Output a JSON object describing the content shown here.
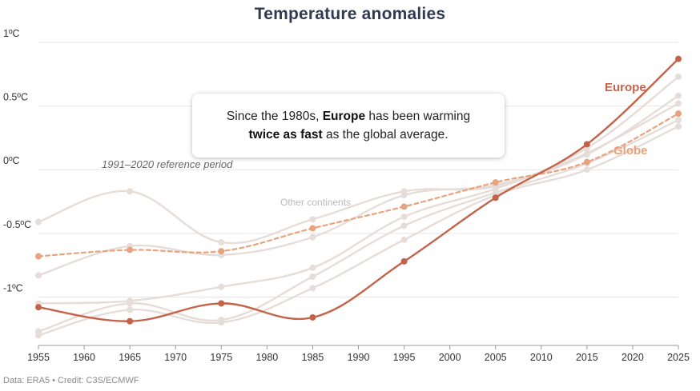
{
  "chart_data": {
    "type": "line",
    "title": "Temperature anomalies",
    "x": [
      1955,
      1965,
      1975,
      1985,
      1995,
      2005,
      2015,
      2025
    ],
    "xticks": [
      1955,
      1960,
      1965,
      1970,
      1975,
      1980,
      1985,
      1990,
      1995,
      2000,
      2005,
      2010,
      2015,
      2020,
      2025
    ],
    "yticks": [
      {
        "value": 1,
        "label": "1ºC"
      },
      {
        "value": 0.5,
        "label": "0.5ºC"
      },
      {
        "value": 0,
        "label": "0ºC"
      },
      {
        "value": -0.5,
        "label": "-0.5ºC"
      },
      {
        "value": -1,
        "label": "-1ºC"
      }
    ],
    "xlim": [
      1955,
      2025
    ],
    "ylim": [
      -1.38,
      1.05
    ],
    "grid": true,
    "series": [
      {
        "name": "Other continents",
        "group": "other",
        "values": [
          -0.41,
          -0.17,
          -0.57,
          -0.39,
          -0.17,
          -0.13,
          0.17,
          0.73
        ]
      },
      {
        "name": "Other continents",
        "group": "other",
        "values": [
          -0.83,
          -0.6,
          -0.67,
          -0.53,
          -0.2,
          -0.12,
          0.12,
          0.58
        ]
      },
      {
        "name": "Other continents",
        "group": "other",
        "values": [
          -1.05,
          -1.03,
          -0.92,
          -0.77,
          -0.37,
          -0.15,
          0.13,
          0.52
        ]
      },
      {
        "name": "Other continents",
        "group": "other",
        "values": [
          -1.27,
          -1.05,
          -1.18,
          -0.84,
          -0.44,
          -0.18,
          0.05,
          0.39
        ]
      },
      {
        "name": "Other continents",
        "group": "other",
        "values": [
          -1.3,
          -1.1,
          -1.2,
          -0.93,
          -0.55,
          -0.2,
          0.0,
          0.34
        ]
      },
      {
        "name": "Globe",
        "group": "globe",
        "values": [
          -0.68,
          -0.63,
          -0.64,
          -0.46,
          -0.29,
          -0.1,
          0.06,
          0.44
        ]
      },
      {
        "name": "Europe",
        "group": "europe",
        "values": [
          -1.08,
          -1.19,
          -1.05,
          -1.16,
          -0.72,
          -0.22,
          0.2,
          0.87
        ]
      }
    ],
    "labels": {
      "europe": "Europe",
      "globe": "Globe",
      "other": "Other continents",
      "reference": "1991–2020 reference period"
    },
    "colors": {
      "europe": "#c4634a",
      "globe": "#e8a27c",
      "other": "#e6dcd8",
      "grid": "#e6e6e6",
      "axis": "#9a9a9a"
    }
  },
  "callout": {
    "part1": "Since the 1980s, ",
    "bold1": "Europe",
    "part2": " has been warming ",
    "bold2": "twice as fast",
    "part3": " as the global average."
  },
  "source": "Data: ERA5 • Credit: C3S/ECMWF"
}
